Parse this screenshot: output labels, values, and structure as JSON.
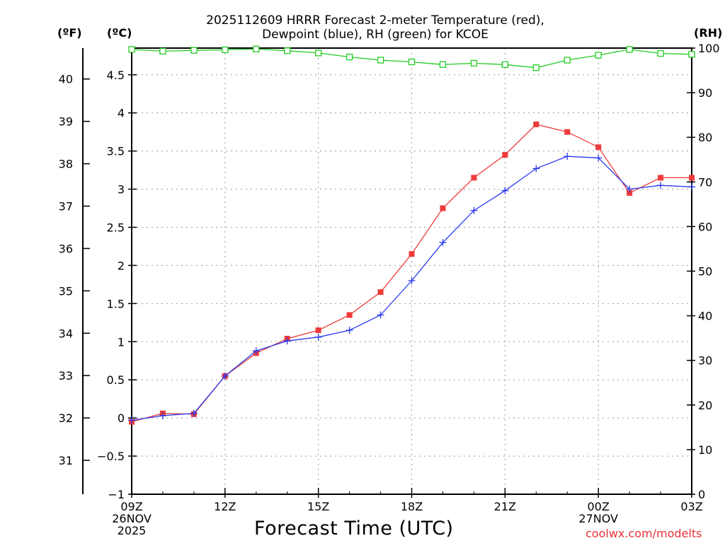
{
  "title_line1": "2025112609 HRRR Forecast 2-meter Temperature (red),",
  "title_line2": "Dewpoint (blue), RH (green) for KCOE",
  "unit_f": "(ºF)",
  "unit_c": "(ºC)",
  "unit_rh": "(RH)",
  "credit": "coolwx.com/modelts",
  "chart_data": {
    "type": "line",
    "title": "2025112609 HRRR Forecast 2-meter Temperature (red), Dewpoint (blue), RH (green) for KCOE",
    "xlabel": "Forecast Time (UTC)",
    "x_hours": [
      0,
      1,
      2,
      3,
      4,
      5,
      6,
      7,
      8,
      9,
      10,
      11,
      12,
      13,
      14,
      15,
      16,
      17,
      18
    ],
    "xlim": [
      0,
      18
    ],
    "x_ticks": [
      {
        "hour": 0,
        "lines": [
          "09Z",
          "26NOV",
          "2025"
        ]
      },
      {
        "hour": 3,
        "lines": [
          "12Z"
        ]
      },
      {
        "hour": 6,
        "lines": [
          "15Z"
        ]
      },
      {
        "hour": 9,
        "lines": [
          "18Z"
        ]
      },
      {
        "hour": 12,
        "lines": [
          "21Z"
        ]
      },
      {
        "hour": 15,
        "lines": [
          "00Z",
          "27NOV"
        ]
      },
      {
        "hour": 18,
        "lines": [
          "03Z"
        ]
      }
    ],
    "y_celsius": {
      "label": "(ºC)",
      "ylim": [
        -1,
        4.85
      ],
      "ticks": [
        -1,
        -0.5,
        0,
        0.5,
        1,
        1.5,
        2,
        2.5,
        3,
        3.5,
        4,
        4.5
      ],
      "tick_labels": [
        "−1",
        "−0.5",
        "0",
        "0.5",
        "1",
        "1.5",
        "2",
        "2.5",
        "3",
        "3.5",
        "4",
        "4.5"
      ],
      "grid": true
    },
    "y_fahrenheit": {
      "label": "(ºF)",
      "ticks": [
        31,
        32,
        33,
        34,
        35,
        36,
        37,
        38,
        39,
        40
      ],
      "tick_labels": [
        "31",
        "32",
        "33",
        "34",
        "35",
        "36",
        "37",
        "38",
        "39",
        "40"
      ]
    },
    "y_rh": {
      "label": "(RH)",
      "ylim": [
        0,
        100
      ],
      "ticks": [
        0,
        10,
        20,
        30,
        40,
        50,
        60,
        70,
        80,
        90,
        100
      ],
      "tick_labels": [
        "0",
        "10",
        "20",
        "30",
        "40",
        "50",
        "60",
        "70",
        "80",
        "90",
        "100"
      ]
    },
    "series": [
      {
        "name": "Temperature (red)",
        "axis": "celsius",
        "color": "#ee3a3a",
        "marker": "filled-square",
        "values": [
          -0.05,
          0.06,
          0.05,
          0.55,
          0.85,
          1.04,
          1.15,
          1.35,
          1.65,
          2.15,
          2.75,
          3.15,
          3.45,
          3.85,
          3.75,
          3.55,
          2.95,
          3.15,
          3.15
        ]
      },
      {
        "name": "Dewpoint (blue)",
        "axis": "celsius",
        "color": "#2a3aee",
        "marker": "plus",
        "values": [
          -0.03,
          0.03,
          0.06,
          0.55,
          0.88,
          1.01,
          1.06,
          1.15,
          1.35,
          1.8,
          2.3,
          2.72,
          2.98,
          3.27,
          3.43,
          3.41,
          3.0,
          3.05,
          3.03
        ]
      },
      {
        "name": "RH (green)",
        "axis": "rh",
        "color": "#22cc22",
        "marker": "open-square",
        "values": [
          99.7,
          99.3,
          99.5,
          99.6,
          99.8,
          99.4,
          98.9,
          98.0,
          97.3,
          96.9,
          96.3,
          96.6,
          96.3,
          95.6,
          97.3,
          98.4,
          99.7,
          98.8,
          98.6
        ]
      }
    ]
  }
}
